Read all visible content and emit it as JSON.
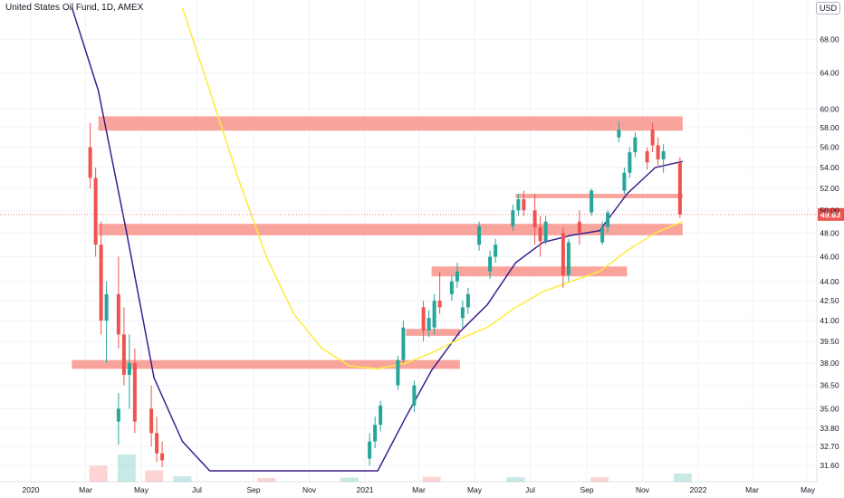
{
  "legend": "United States Oil Fund, 1D, AMEX",
  "currency_button": "USD",
  "colors": {
    "up": "#26a69a",
    "down": "#ef5350",
    "ma_short": "#3b1f8f",
    "ma_long": "#ffeb3b",
    "zone": "#f7948c",
    "price_tag": "#ef5350",
    "grid": "#f0f3fa"
  },
  "chart_data": {
    "type": "candlestick",
    "y_scale": "log",
    "ylim": [
      31.2,
      72.5
    ],
    "y_ticks": [
      "31.60",
      "32.70",
      "33.80",
      "35.00",
      "36.50",
      "38.00",
      "39.50",
      "41.00",
      "42.50",
      "44.00",
      "46.00",
      "48.00",
      "50.00",
      "52.00",
      "54.00",
      "56.00",
      "58.00",
      "60.00",
      "64.00",
      "68.00"
    ],
    "x_ticks": [
      "2020",
      "Mar",
      "May",
      "Jul",
      "Sep",
      "Nov",
      "2021",
      "Mar",
      "May",
      "Jul",
      "Sep",
      "Nov",
      "2022",
      "Mar",
      "May"
    ],
    "last_price": "49.63",
    "zones": [
      {
        "from": "2020-03",
        "to": "2021-12",
        "low": 57.7,
        "high": 59.2
      },
      {
        "from": "2021-06",
        "to": "2021-12",
        "low": 51.1,
        "high": 51.5
      },
      {
        "from": "2020-03",
        "to": "2021-12",
        "low": 47.8,
        "high": 48.8
      },
      {
        "from": "2021-03",
        "to": "2021-10",
        "low": 44.4,
        "high": 45.2
      },
      {
        "from": "2021-02",
        "to": "2021-04",
        "low": 39.9,
        "high": 40.4
      },
      {
        "from": "2020-02",
        "to": "2021-04",
        "low": 37.6,
        "high": 38.2
      }
    ],
    "series": [
      {
        "name": "",
        "type": "candles",
        "x": [
          "2020-03",
          "2020-03",
          "2020-03",
          "2020-03",
          "2020-04",
          "2020-04",
          "2020-04",
          "2020-04",
          "2020-04",
          "2020-05",
          "2020-05",
          "2020-05",
          "2021-01",
          "2021-01",
          "2021-01",
          "2021-02",
          "2021-02",
          "2021-02",
          "2021-03",
          "2021-03",
          "2021-03",
          "2021-03",
          "2021-04",
          "2021-04",
          "2021-04",
          "2021-04",
          "2021-05",
          "2021-05",
          "2021-05",
          "2021-06",
          "2021-06",
          "2021-06",
          "2021-07",
          "2021-07",
          "2021-07",
          "2021-08",
          "2021-08",
          "2021-08",
          "2021-09",
          "2021-09",
          "2021-09",
          "2021-10",
          "2021-10",
          "2021-10",
          "2021-10",
          "2021-11",
          "2021-11",
          "2021-11",
          "2021-11",
          "2021-12"
        ],
        "values": [
          [
            56,
            58.5,
            52,
            53
          ],
          [
            53,
            54,
            46,
            47
          ],
          [
            47,
            49,
            40,
            41
          ],
          [
            41,
            44,
            38,
            43
          ],
          [
            43,
            46,
            39,
            40
          ],
          [
            40,
            42,
            36.5,
            37.2
          ],
          [
            37.2,
            40,
            35,
            38
          ],
          [
            38,
            39,
            33.5,
            34.2
          ],
          [
            34.2,
            36,
            32.8,
            35
          ],
          [
            35,
            36.5,
            32.7,
            33.5
          ],
          [
            33.5,
            34.5,
            31.8,
            32.3
          ],
          [
            32.3,
            33,
            31.5,
            31.9
          ],
          [
            32,
            33.5,
            31.6,
            33
          ],
          [
            33,
            34.5,
            32.6,
            34
          ],
          [
            34,
            35.5,
            33.6,
            35.2
          ],
          [
            35.2,
            36.8,
            34.8,
            36.5
          ],
          [
            36.5,
            38.5,
            36.2,
            38.2
          ],
          [
            38.2,
            41,
            38,
            40.5
          ],
          [
            40.5,
            43,
            40,
            42.5
          ],
          [
            42.5,
            44.8,
            41.5,
            42
          ],
          [
            42,
            42.5,
            39.5,
            40.3
          ],
          [
            40.3,
            41.8,
            39.8,
            41.2
          ],
          [
            41.2,
            42.5,
            40.5,
            42
          ],
          [
            42,
            43.5,
            41.5,
            43
          ],
          [
            43,
            44.5,
            42.5,
            44
          ],
          [
            44,
            45.5,
            43.5,
            44.8
          ],
          [
            44.8,
            46.5,
            44.2,
            46
          ],
          [
            46,
            47.5,
            45.5,
            47
          ],
          [
            47,
            49,
            46.5,
            48.6
          ],
          [
            48.6,
            50.5,
            48.2,
            50
          ],
          [
            50,
            51.5,
            49.5,
            51
          ],
          [
            51,
            51.8,
            49.5,
            50
          ],
          [
            50,
            51.5,
            47,
            48.5
          ],
          [
            48.5,
            49.5,
            46,
            47.3
          ],
          [
            47.3,
            49.5,
            47,
            49
          ],
          [
            49,
            50,
            47,
            48
          ],
          [
            48,
            48.5,
            43.5,
            44.5
          ],
          [
            44.5,
            47.5,
            44,
            47.2
          ],
          [
            47.2,
            49,
            47,
            48.5
          ],
          [
            48.5,
            50,
            48,
            49.8
          ],
          [
            49.8,
            52,
            49.5,
            51.8
          ],
          [
            51.8,
            54,
            51.5,
            53.5
          ],
          [
            53.5,
            56,
            53,
            55.5
          ],
          [
            55.5,
            57.5,
            55,
            57
          ],
          [
            57,
            58.7,
            56.5,
            57.8
          ],
          [
            57.8,
            58.5,
            55.5,
            56.2
          ],
          [
            56.2,
            57,
            54.2,
            54.8
          ],
          [
            54.8,
            56.3,
            53.5,
            55.6
          ],
          [
            55.6,
            56,
            53.8,
            54.5
          ],
          [
            54.5,
            55,
            49.3,
            49.63
          ]
        ]
      },
      {
        "name": "",
        "type": "line",
        "x": [
          "2020-01",
          "2020-02",
          "2020-03",
          "2020-04",
          "2020-05",
          "2020-06",
          "2020-07",
          "2021-01",
          "2021-02",
          "2021-03",
          "2021-04",
          "2021-05",
          "2021-06",
          "2021-07",
          "2021-08",
          "2021-09",
          "2021-10",
          "2021-11",
          "2021-12"
        ],
        "values": [
          null,
          72,
          62,
          48,
          37,
          33,
          31.3,
          31.3,
          34.5,
          37.5,
          40.2,
          42.2,
          45.5,
          47.2,
          47.8,
          48.2,
          51.5,
          54,
          54.6
        ]
      },
      {
        "name": "",
        "type": "line",
        "x": [
          "2020-01",
          "2020-02",
          "2020-03",
          "2020-04",
          "2020-05",
          "2020-06",
          "2020-07",
          "2020-08",
          "2020-09",
          "2020-10",
          "2020-11",
          "2020-12",
          "2021-01",
          "2021-02",
          "2021-03",
          "2021-04",
          "2021-05",
          "2021-06",
          "2021-07",
          "2021-08",
          "2021-09",
          "2021-10",
          "2021-11",
          "2021-12"
        ],
        "values": [
          null,
          null,
          null,
          null,
          null,
          72,
          62,
          53,
          46,
          41.5,
          39,
          37.8,
          37.6,
          38,
          38.7,
          39.7,
          40.5,
          42,
          43.2,
          44,
          44.8,
          46.5,
          48,
          49
        ]
      }
    ],
    "volume": {
      "x": [
        "2020-03",
        "2020-04",
        "2020-05",
        "2020-06",
        "2020-09",
        "2020-12",
        "2021-03",
        "2021-06",
        "2021-09",
        "2021-12"
      ],
      "values": [
        3.5,
        6,
        2.5,
        1.2,
        0.8,
        0.9,
        1.1,
        1.0,
        1.0,
        1.8
      ]
    }
  }
}
